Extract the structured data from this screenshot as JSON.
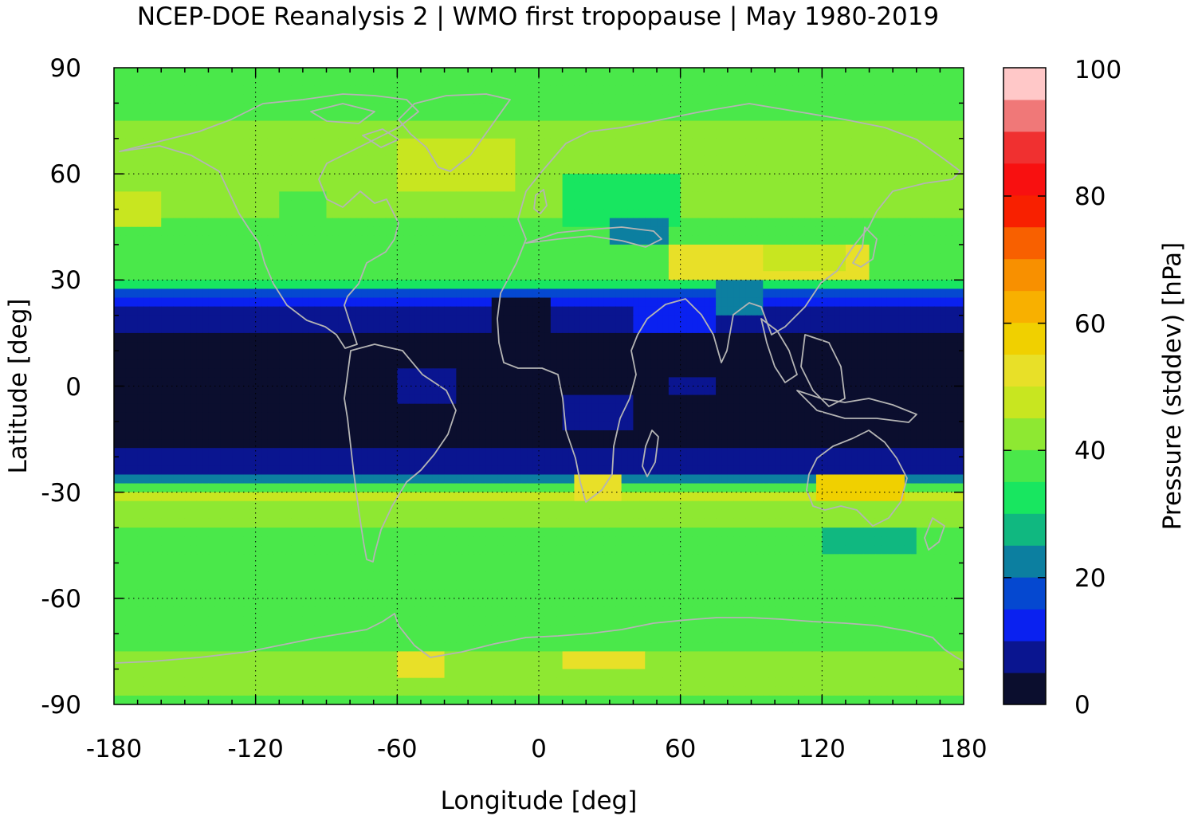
{
  "chart_data": {
    "type": "heatmap",
    "title": "NCEP-DOE Reanalysis 2 | WMO first tropopause | May 1980-2019",
    "xlabel": "Longitude [deg]",
    "ylabel": "Latitude [deg]",
    "colorbar_label": "Pressure (stddev) [hPa]",
    "xlim": [
      -180,
      180
    ],
    "ylim": [
      -90,
      90
    ],
    "x_ticks": [
      -180,
      -120,
      -60,
      0,
      60,
      120,
      180
    ],
    "y_ticks": [
      -90,
      -60,
      -30,
      0,
      30,
      60,
      90
    ],
    "x_tick_labels": [
      "-180",
      "-120",
      "-60",
      "0",
      "60",
      "120",
      "180"
    ],
    "y_tick_labels": [
      "-90",
      "-60",
      "-30",
      "0",
      "30",
      "60",
      "90"
    ],
    "colorbar_range": [
      0,
      100
    ],
    "colorbar_ticks": [
      0,
      20,
      40,
      60,
      80,
      100
    ],
    "colorbar_tick_labels": [
      "0",
      "20",
      "40",
      "60",
      "80",
      "100"
    ],
    "colorbar_levels": [
      0,
      5,
      10,
      15,
      20,
      25,
      30,
      35,
      40,
      45,
      50,
      55,
      60,
      65,
      70,
      75,
      80,
      85,
      90,
      95,
      100
    ],
    "colormap": [
      "#0b0e2e",
      "#0a1590",
      "#0a21f0",
      "#0548d0",
      "#0c7fa0",
      "#10b880",
      "#18e660",
      "#4ae84a",
      "#8ee832",
      "#c8e620",
      "#e8e028",
      "#f0d000",
      "#f8b000",
      "#f89000",
      "#f86000",
      "#f82000",
      "#f81010",
      "#f03030",
      "#f07878",
      "#ffc8c8"
    ],
    "grid": true,
    "coastlines": true,
    "zonal_mean_stddev": {
      "lat": [
        -90,
        -80,
        -75,
        -70,
        -65,
        -60,
        -55,
        -50,
        -45,
        -40,
        -35,
        -30,
        -27.5,
        -25,
        -20,
        -15,
        -10,
        -5,
        0,
        5,
        10,
        15,
        20,
        25,
        27.5,
        30,
        35,
        40,
        45,
        50,
        55,
        60,
        65,
        70,
        75,
        80,
        90
      ],
      "value": [
        39,
        44,
        40,
        38,
        37,
        37,
        37,
        37,
        38,
        40,
        44,
        46,
        30,
        10,
        7,
        3,
        2,
        2,
        2,
        2,
        3,
        4,
        8,
        12,
        24,
        36,
        38,
        37,
        39,
        41,
        41,
        41,
        42,
        43,
        40,
        38,
        40
      ]
    },
    "regional_features": [
      {
        "lon": [
          -60,
          -10
        ],
        "lat": [
          55,
          70
        ],
        "value": 48
      },
      {
        "lon": [
          -180,
          -160
        ],
        "lat": [
          45,
          55
        ],
        "value": 47
      },
      {
        "lon": [
          -110,
          -90
        ],
        "lat": [
          45,
          55
        ],
        "value": 36
      },
      {
        "lon": [
          10,
          60
        ],
        "lat": [
          45,
          60
        ],
        "value": 30
      },
      {
        "lon": [
          30,
          55
        ],
        "lat": [
          40,
          48
        ],
        "value": 24
      },
      {
        "lon": [
          55,
          140
        ],
        "lat": [
          30,
          40
        ],
        "value": 52
      },
      {
        "lon": [
          95,
          130
        ],
        "lat": [
          32,
          40
        ],
        "value": 48
      },
      {
        "lon": [
          75,
          95
        ],
        "lat": [
          20,
          30
        ],
        "value": 24
      },
      {
        "lon": [
          40,
          75
        ],
        "lat": [
          15,
          25
        ],
        "value": 14
      },
      {
        "lon": [
          -20,
          5
        ],
        "lat": [
          10,
          25
        ],
        "value": 4
      },
      {
        "lon": [
          -60,
          -35
        ],
        "lat": [
          -5,
          5
        ],
        "value": 7
      },
      {
        "lon": [
          10,
          40
        ],
        "lat": [
          -12,
          -3
        ],
        "value": 7
      },
      {
        "lon": [
          55,
          75
        ],
        "lat": [
          -2,
          3
        ],
        "value": 8
      },
      {
        "lon": [
          15,
          35
        ],
        "lat": [
          -32,
          -26
        ],
        "value": 50
      },
      {
        "lon": [
          118,
          155
        ],
        "lat": [
          -32,
          -26
        ],
        "value": 55
      },
      {
        "lon": [
          120,
          160
        ],
        "lat": [
          -47,
          -40
        ],
        "value": 27
      },
      {
        "lon": [
          -60,
          -40
        ],
        "lat": [
          -82,
          -75
        ],
        "value": 50
      },
      {
        "lon": [
          10,
          45
        ],
        "lat": [
          -80,
          -75
        ],
        "value": 50
      }
    ]
  }
}
